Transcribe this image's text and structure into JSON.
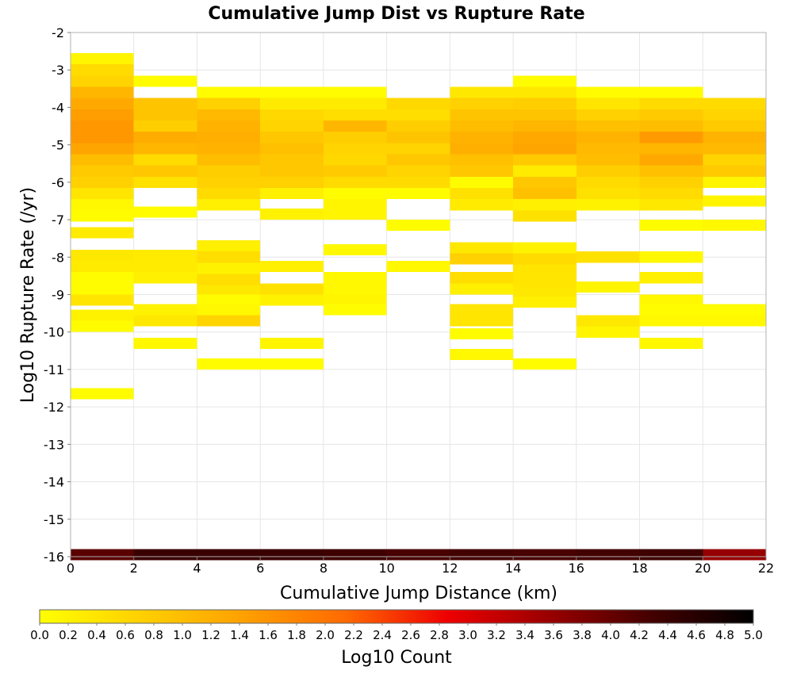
{
  "chart_data": {
    "type": "heatmap",
    "title": "Cumulative Jump Dist vs Rupture Rate",
    "xlabel": "Cumulative Jump Distance (km)",
    "ylabel": "Log10 Rupture Rate (/yr)",
    "colorbar_label": "Log10 Count",
    "xlim": [
      0,
      22
    ],
    "ylim": [
      -16,
      -2
    ],
    "x_ticks": [
      "0",
      "2",
      "4",
      "6",
      "8",
      "10",
      "12",
      "14",
      "16",
      "18",
      "20",
      "22"
    ],
    "y_ticks": [
      "-2",
      "-3",
      "-4",
      "-5",
      "-6",
      "-7",
      "-8",
      "-9",
      "-10",
      "-11",
      "-12",
      "-13",
      "-14",
      "-15",
      "-16"
    ],
    "colorbar_ticks": [
      "0.0",
      "0.2",
      "0.4",
      "0.6",
      "0.8",
      "1.0",
      "1.2",
      "1.4",
      "1.6",
      "1.8",
      "2.0",
      "2.2",
      "2.4",
      "2.6",
      "2.8",
      "3.0",
      "3.2",
      "3.4",
      "3.6",
      "3.8",
      "4.0",
      "4.2",
      "4.4",
      "4.6",
      "4.8",
      "5.0"
    ],
    "color_range": [
      0,
      5
    ],
    "colorscale": [
      "#ffff00",
      "#ffd000",
      "#ffa000",
      "#ff6a00",
      "#ee0000",
      "#990000",
      "#440000",
      "#000000"
    ],
    "grid": true,
    "bin_width_x": 2,
    "bin_height_y": 0.3,
    "cells": [
      [
        0,
        -2.7,
        0.15
      ],
      [
        0,
        -3.0,
        0.55
      ],
      [
        0,
        -3.3,
        0.65
      ],
      [
        0,
        -3.6,
        1.1
      ],
      [
        0,
        -3.9,
        1.3
      ],
      [
        0,
        -4.2,
        1.45
      ],
      [
        0,
        -4.5,
        1.55
      ],
      [
        0,
        -4.8,
        1.55
      ],
      [
        0,
        -5.1,
        1.35
      ],
      [
        0,
        -5.4,
        1.0
      ],
      [
        0,
        -5.7,
        0.8
      ],
      [
        0,
        -6.0,
        0.7
      ],
      [
        0,
        -6.3,
        0.4
      ],
      [
        0,
        -6.6,
        0.1
      ],
      [
        0,
        -6.9,
        0.05
      ],
      [
        0,
        -7.35,
        0.3
      ],
      [
        0,
        -7.95,
        0.35
      ],
      [
        0,
        -8.25,
        0.3
      ],
      [
        0,
        -8.55,
        0.05
      ],
      [
        0,
        -8.85,
        0.05
      ],
      [
        0,
        -9.15,
        0.4
      ],
      [
        0,
        -9.55,
        0.2
      ],
      [
        0,
        -9.85,
        0.05
      ],
      [
        0,
        -11.65,
        0.05
      ],
      [
        2,
        -3.3,
        0.05
      ],
      [
        2,
        -3.9,
        0.9
      ],
      [
        2,
        -4.2,
        0.9
      ],
      [
        2,
        -4.5,
        0.75
      ],
      [
        2,
        -4.8,
        1.25
      ],
      [
        2,
        -5.1,
        1.1
      ],
      [
        2,
        -5.4,
        0.55
      ],
      [
        2,
        -5.7,
        0.85
      ],
      [
        2,
        -6.0,
        0.45
      ],
      [
        2,
        -6.8,
        0.05
      ],
      [
        2,
        -7.95,
        0.3
      ],
      [
        2,
        -8.25,
        0.3
      ],
      [
        2,
        -8.55,
        0.25
      ],
      [
        2,
        -9.4,
        0.2
      ],
      [
        2,
        -9.7,
        0.35
      ],
      [
        2,
        -10.3,
        0.1
      ],
      [
        4,
        -3.6,
        0.05
      ],
      [
        4,
        -3.9,
        0.7
      ],
      [
        4,
        -4.2,
        1.05
      ],
      [
        4,
        -4.5,
        1.15
      ],
      [
        4,
        -4.8,
        1.2
      ],
      [
        4,
        -5.1,
        1.15
      ],
      [
        4,
        -5.4,
        1.0
      ],
      [
        4,
        -5.7,
        0.75
      ],
      [
        4,
        -6.0,
        0.7
      ],
      [
        4,
        -6.3,
        0.55
      ],
      [
        4,
        -6.6,
        0.25
      ],
      [
        4,
        -7.7,
        0.25
      ],
      [
        4,
        -8.0,
        0.5
      ],
      [
        4,
        -8.3,
        0.2
      ],
      [
        4,
        -8.6,
        0.5
      ],
      [
        4,
        -8.9,
        0.35
      ],
      [
        4,
        -9.15,
        0.05
      ],
      [
        4,
        -9.4,
        0.1
      ],
      [
        4,
        -9.7,
        0.65
      ],
      [
        4,
        -10.85,
        0.05
      ],
      [
        6,
        -3.6,
        0.05
      ],
      [
        6,
        -3.9,
        0.3
      ],
      [
        6,
        -4.2,
        0.6
      ],
      [
        6,
        -4.5,
        0.65
      ],
      [
        6,
        -4.8,
        0.85
      ],
      [
        6,
        -5.1,
        0.95
      ],
      [
        6,
        -5.4,
        0.85
      ],
      [
        6,
        -5.7,
        0.85
      ],
      [
        6,
        -6.0,
        0.7
      ],
      [
        6,
        -6.3,
        0.25
      ],
      [
        6,
        -6.85,
        0.2
      ],
      [
        6,
        -8.25,
        0.25
      ],
      [
        6,
        -8.85,
        0.45
      ],
      [
        6,
        -9.15,
        0.2
      ],
      [
        6,
        -10.3,
        0.15
      ],
      [
        6,
        -10.85,
        0.05
      ],
      [
        8,
        -3.6,
        0.05
      ],
      [
        8,
        -3.9,
        0.3
      ],
      [
        8,
        -4.2,
        0.5
      ],
      [
        8,
        -4.5,
        1.1
      ],
      [
        8,
        -4.8,
        0.75
      ],
      [
        8,
        -5.1,
        0.65
      ],
      [
        8,
        -5.4,
        0.6
      ],
      [
        8,
        -5.7,
        0.8
      ],
      [
        8,
        -6.0,
        0.55
      ],
      [
        8,
        -6.3,
        0.05
      ],
      [
        8,
        -6.6,
        0.15
      ],
      [
        8,
        -6.85,
        0.15
      ],
      [
        8,
        -7.8,
        0.1
      ],
      [
        8,
        -8.55,
        0.1
      ],
      [
        8,
        -8.85,
        0.1
      ],
      [
        8,
        -9.15,
        0.15
      ],
      [
        8,
        -9.4,
        0.05
      ],
      [
        10,
        -3.9,
        0.6
      ],
      [
        10,
        -4.2,
        0.5
      ],
      [
        10,
        -4.5,
        0.75
      ],
      [
        10,
        -4.8,
        0.9
      ],
      [
        10,
        -5.1,
        0.65
      ],
      [
        10,
        -5.4,
        0.85
      ],
      [
        10,
        -5.7,
        0.65
      ],
      [
        10,
        -6.0,
        0.55
      ],
      [
        10,
        -6.3,
        0.05
      ],
      [
        10,
        -7.15,
        0.05
      ],
      [
        10,
        -8.25,
        0.1
      ],
      [
        12,
        -3.6,
        0.35
      ],
      [
        12,
        -3.9,
        0.7
      ],
      [
        12,
        -4.2,
        0.9
      ],
      [
        12,
        -4.5,
        1.0
      ],
      [
        12,
        -4.8,
        1.15
      ],
      [
        12,
        -5.1,
        1.2
      ],
      [
        12,
        -5.4,
        0.95
      ],
      [
        12,
        -5.7,
        0.85
      ],
      [
        12,
        -6.0,
        0.05
      ],
      [
        12,
        -6.3,
        0.45
      ],
      [
        12,
        -6.6,
        0.3
      ],
      [
        12,
        -7.75,
        0.35
      ],
      [
        12,
        -8.05,
        0.7
      ],
      [
        12,
        -8.55,
        0.5
      ],
      [
        12,
        -8.85,
        0.25
      ],
      [
        12,
        -9.4,
        0.4
      ],
      [
        12,
        -9.7,
        0.4
      ],
      [
        12,
        -10.05,
        0.05
      ],
      [
        12,
        -10.6,
        0.1
      ],
      [
        14,
        -3.3,
        0.05
      ],
      [
        14,
        -3.6,
        0.35
      ],
      [
        14,
        -3.9,
        0.75
      ],
      [
        14,
        -4.2,
        0.9
      ],
      [
        14,
        -4.5,
        1.1
      ],
      [
        14,
        -4.8,
        1.3
      ],
      [
        14,
        -5.1,
        1.35
      ],
      [
        14,
        -5.4,
        0.8
      ],
      [
        14,
        -5.7,
        0.3
      ],
      [
        14,
        -6.0,
        0.85
      ],
      [
        14,
        -6.3,
        0.95
      ],
      [
        14,
        -6.6,
        0.25
      ],
      [
        14,
        -6.9,
        0.45
      ],
      [
        14,
        -7.75,
        0.2
      ],
      [
        14,
        -8.05,
        0.55
      ],
      [
        14,
        -8.35,
        0.4
      ],
      [
        14,
        -8.65,
        0.4
      ],
      [
        14,
        -8.95,
        0.35
      ],
      [
        14,
        -9.2,
        0.25
      ],
      [
        14,
        -10.85,
        0.05
      ],
      [
        16,
        -3.6,
        0.05
      ],
      [
        16,
        -3.9,
        0.4
      ],
      [
        16,
        -4.2,
        0.7
      ],
      [
        16,
        -4.5,
        0.95
      ],
      [
        16,
        -4.8,
        1.15
      ],
      [
        16,
        -5.1,
        1.05
      ],
      [
        16,
        -5.4,
        1.0
      ],
      [
        16,
        -5.7,
        0.75
      ],
      [
        16,
        -6.0,
        0.55
      ],
      [
        16,
        -6.3,
        0.45
      ],
      [
        16,
        -6.6,
        0.2
      ],
      [
        16,
        -8.0,
        0.45
      ],
      [
        16,
        -8.8,
        0.15
      ],
      [
        16,
        -9.7,
        0.35
      ],
      [
        16,
        -10.0,
        0.15
      ],
      [
        18,
        -3.6,
        0.05
      ],
      [
        18,
        -3.9,
        0.55
      ],
      [
        18,
        -4.2,
        0.8
      ],
      [
        18,
        -4.5,
        1.0
      ],
      [
        18,
        -4.8,
        1.5
      ],
      [
        18,
        -5.1,
        1.1
      ],
      [
        18,
        -5.4,
        1.3
      ],
      [
        18,
        -5.7,
        0.95
      ],
      [
        18,
        -6.0,
        0.7
      ],
      [
        18,
        -6.3,
        0.55
      ],
      [
        18,
        -6.6,
        0.35
      ],
      [
        18,
        -7.15,
        0.05
      ],
      [
        18,
        -8.0,
        0.1
      ],
      [
        18,
        -8.55,
        0.25
      ],
      [
        18,
        -9.15,
        0.1
      ],
      [
        18,
        -9.4,
        0.05
      ],
      [
        18,
        -9.7,
        0.1
      ],
      [
        18,
        -10.3,
        0.1
      ],
      [
        20,
        -3.9,
        0.55
      ],
      [
        20,
        -4.2,
        0.65
      ],
      [
        20,
        -4.5,
        0.8
      ],
      [
        20,
        -4.8,
        1.15
      ],
      [
        20,
        -5.1,
        1.05
      ],
      [
        20,
        -5.4,
        0.65
      ],
      [
        20,
        -5.7,
        0.8
      ],
      [
        20,
        -6.0,
        0.15
      ],
      [
        20,
        -6.5,
        0.15
      ],
      [
        20,
        -7.15,
        0.1
      ],
      [
        20,
        -9.4,
        0.05
      ],
      [
        20,
        -9.7,
        0.1
      ],
      [
        0,
        -15.95,
        4.1
      ],
      [
        2,
        -15.95,
        4.4
      ],
      [
        4,
        -15.95,
        4.4
      ],
      [
        6,
        -15.95,
        4.4
      ],
      [
        8,
        -15.95,
        4.35
      ],
      [
        10,
        -15.95,
        4.25
      ],
      [
        12,
        -15.95,
        4.3
      ],
      [
        14,
        -15.95,
        4.25
      ],
      [
        16,
        -15.95,
        4.3
      ],
      [
        18,
        -15.95,
        4.35
      ],
      [
        20,
        -15.95,
        3.6
      ]
    ]
  }
}
